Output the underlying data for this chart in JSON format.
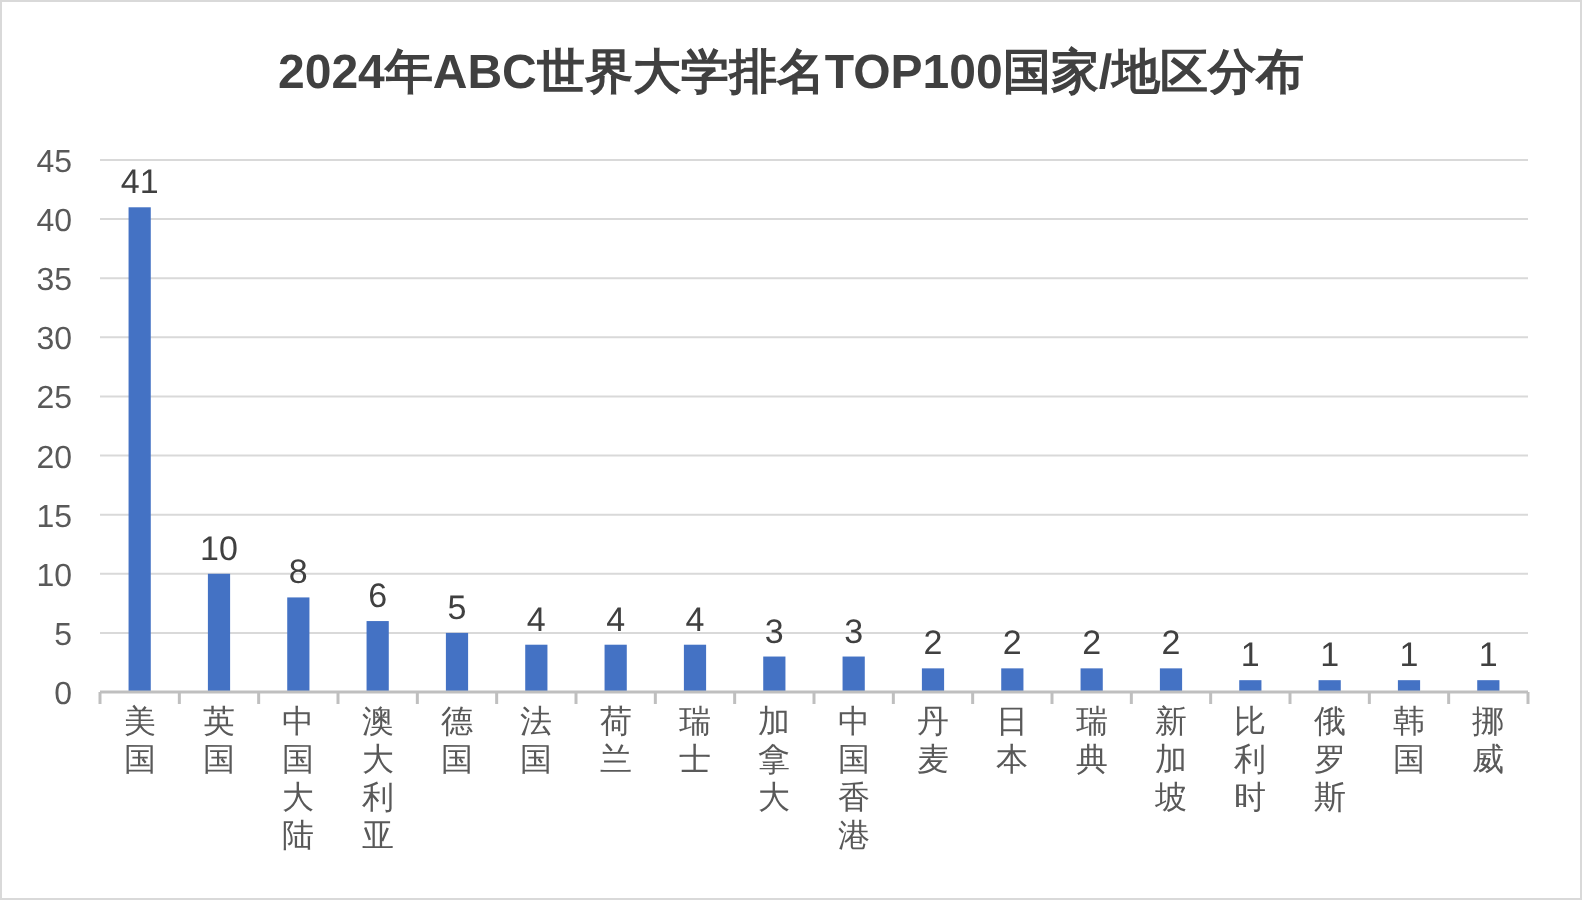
{
  "chart_data": {
    "type": "bar",
    "title": "2024年ABC世界大学排名TOP100国家/地区分布",
    "categories": [
      "美国",
      "英国",
      "中国大陆",
      "澳大利亚",
      "德国",
      "法国",
      "荷兰",
      "瑞士",
      "加拿大",
      "中国香港",
      "丹麦",
      "日本",
      "瑞典",
      "新加坡",
      "比利时",
      "俄罗斯",
      "韩国",
      "挪威"
    ],
    "values": [
      41,
      10,
      8,
      6,
      5,
      4,
      4,
      4,
      3,
      3,
      2,
      2,
      2,
      2,
      1,
      1,
      1,
      1
    ],
    "color": "#4472c4",
    "ylim": [
      0,
      45
    ],
    "yticks": [
      0,
      5,
      10,
      15,
      20,
      25,
      30,
      35,
      40,
      45
    ],
    "grid": "y",
    "data_labels": true
  }
}
